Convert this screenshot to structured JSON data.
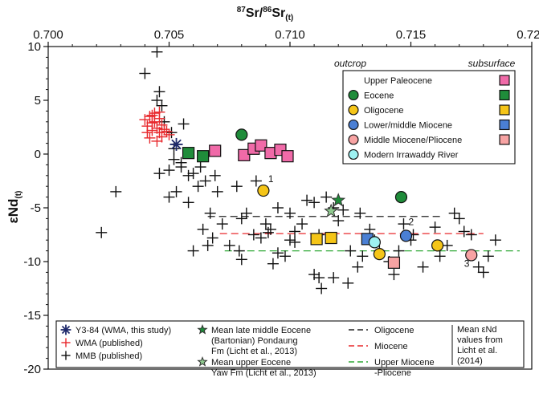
{
  "chart_data": {
    "type": "scatter",
    "title": "",
    "xlabel": {
      "main": "Sr",
      "sup_pre": "87",
      "slash": "/",
      "sup_mid": "86",
      "tail": "Sr",
      "sub": "(t)"
    },
    "ylabel": {
      "main": "εNd",
      "sub": "(t)"
    },
    "xlim": [
      0.7,
      0.72
    ],
    "ylim": [
      -20,
      10
    ],
    "x_ticks": [
      0.7,
      0.705,
      0.71,
      0.715,
      0.72
    ],
    "x_tick_labels": [
      "0.700",
      "0.705",
      "0.710",
      "0.715",
      "0.720"
    ],
    "y_ticks": [
      10,
      5,
      0,
      -5,
      -10,
      -15,
      -20
    ],
    "y_tick_labels": [
      "10",
      "5",
      "0",
      "-5",
      "-10",
      "-15",
      "-20"
    ],
    "series": [
      {
        "name": "MMB (published)",
        "marker": "plus",
        "color": "#111111",
        "x": [
          0.7045,
          0.704,
          0.7046,
          0.7047,
          0.7045,
          0.7048,
          0.7051,
          0.7052,
          0.705,
          0.7052,
          0.7055,
          0.7053,
          0.7058,
          0.706,
          0.7062,
          0.7058,
          0.7055,
          0.7065,
          0.707,
          0.7067,
          0.7064,
          0.706,
          0.7072,
          0.7068,
          0.705,
          0.7046,
          0.708,
          0.709,
          0.7085,
          0.7082,
          0.7092,
          0.7095,
          0.71,
          0.7088,
          0.7075,
          0.7079,
          0.7105,
          0.711,
          0.71,
          0.7098,
          0.7102,
          0.7115,
          0.7112,
          0.712,
          0.7125,
          0.7118,
          0.713,
          0.7128,
          0.7124,
          0.7135,
          0.7137,
          0.7133,
          0.7129,
          0.7145,
          0.715,
          0.7147,
          0.7141,
          0.716,
          0.7162,
          0.7165,
          0.717,
          0.7175,
          0.7178,
          0.7182,
          0.7185,
          0.718,
          0.7172,
          0.7168,
          0.7155,
          0.7151,
          0.7118,
          0.7113,
          0.7028,
          0.7022,
          0.7056,
          0.7063,
          0.7069,
          0.7086,
          0.7107,
          0.711,
          0.7095,
          0.7091,
          0.7078,
          0.7066,
          0.7093,
          0.708,
          0.7102,
          0.7122,
          0.7112,
          0.7143
        ],
        "y": [
          9.5,
          7.5,
          5.8,
          4.5,
          5.0,
          3.0,
          2.0,
          0.5,
          -1.5,
          -0.5,
          -1.2,
          -3.5,
          -4.5,
          -1.8,
          -3.0,
          -2.0,
          -0.8,
          -2.5,
          -3.5,
          -5.5,
          -7.0,
          -9.0,
          -6.5,
          -7.8,
          -4.0,
          -1.8,
          -6.0,
          -6.5,
          -7.5,
          -5.5,
          -7.0,
          -5.0,
          -5.5,
          -7.8,
          -8.5,
          -9.0,
          -6.5,
          -4.5,
          -8.0,
          -9.5,
          -7.2,
          -4.0,
          -7.5,
          -6.2,
          -9.0,
          -11.5,
          -9.5,
          -10.5,
          -12.0,
          -8.0,
          -9.0,
          -7.0,
          -5.5,
          -9.0,
          -8.0,
          -6.5,
          -10.0,
          -6.8,
          -9.5,
          -8.5,
          -6.0,
          -7.5,
          -10.5,
          -9.5,
          -8.0,
          -11.0,
          -7.2,
          -5.5,
          -10.5,
          -7.5,
          -5.0,
          -12.5,
          -3.5,
          -7.3,
          2.8,
          -1.2,
          -2.0,
          -2.5,
          -4.3,
          -11.2,
          -9.2,
          -7.3,
          -3.0,
          -8.5,
          -10.2,
          -9.8,
          -8.2,
          -5.2,
          -11.5,
          -11.2
        ]
      },
      {
        "name": "WMA (published)",
        "marker": "plus",
        "color": "#e8282c",
        "x": [
          0.704,
          0.7041,
          0.7042,
          0.7043,
          0.7044,
          0.7045,
          0.7046,
          0.7047,
          0.7041,
          0.7043,
          0.7044,
          0.7046,
          0.7048,
          0.705,
          0.7042,
          0.7045,
          0.7047,
          0.7049,
          0.7043,
          0.7046
        ],
        "y": [
          3.2,
          2.6,
          3.5,
          2.9,
          3.0,
          2.4,
          3.3,
          2.7,
          2.0,
          2.2,
          3.8,
          2.0,
          2.3,
          1.8,
          1.5,
          1.2,
          1.6,
          2.1,
          3.6,
          3.9
        ]
      },
      {
        "name": "Y3-84 (WMA, this study)",
        "marker": "asterisk",
        "color": "#1f2a6b",
        "x": [
          0.7053
        ],
        "y": [
          0.9
        ]
      },
      {
        "name": "Eocene outcrop",
        "marker": "circle",
        "color": "#1f8c3a",
        "x": [
          0.708,
          0.7146
        ],
        "y": [
          1.8,
          -4.0
        ]
      },
      {
        "name": "Eocene subsurface",
        "marker": "square",
        "color": "#1f8c3a",
        "x": [
          0.7058,
          0.7064
        ],
        "y": [
          0.1,
          -0.2
        ]
      },
      {
        "name": "Upper Paleocene subsurface",
        "marker": "square",
        "color": "#f06aa8",
        "x": [
          0.7069,
          0.7081,
          0.7085,
          0.7088,
          0.7092,
          0.7096,
          0.7099
        ],
        "y": [
          0.3,
          -0.1,
          0.5,
          0.8,
          0.1,
          0.4,
          -0.2
        ]
      },
      {
        "name": "Oligocene outcrop",
        "marker": "circle",
        "color": "#f5c518",
        "x": [
          0.7089,
          0.7137,
          0.7161
        ],
        "y": [
          -3.4,
          -9.3,
          -8.5
        ]
      },
      {
        "name": "Oligocene subsurface",
        "marker": "square",
        "color": "#f5c518",
        "x": [
          0.7111,
          0.7117
        ],
        "y": [
          -7.9,
          -7.8
        ]
      },
      {
        "name": "Lower/middle Miocene outcrop",
        "marker": "circle",
        "color": "#4a7fd4",
        "x": [
          0.7148
        ],
        "y": [
          -7.6
        ]
      },
      {
        "name": "Lower/middle Miocene subsurface",
        "marker": "square",
        "color": "#4a7fd4",
        "x": [
          0.7132
        ],
        "y": [
          -7.9
        ]
      },
      {
        "name": "Middle Miocene/Pliocene outcrop",
        "marker": "circle",
        "color": "#f7a3a3",
        "x": [
          0.7175
        ],
        "y": [
          -9.4
        ]
      },
      {
        "name": "Middle Miocene/Pliocene subsurface",
        "marker": "square",
        "color": "#f7a3a3",
        "x": [
          0.7143
        ],
        "y": [
          -10.1
        ]
      },
      {
        "name": "Modern Irrawaddy River",
        "marker": "circle",
        "color": "#9ef2f2",
        "x": [
          0.7135
        ],
        "y": [
          -8.2
        ]
      },
      {
        "name": "Mean late middle Eocene (Bartonian) Pondaung Fm",
        "marker": "star",
        "color": "#1f8c3a",
        "x": [
          0.712
        ],
        "y": [
          -4.3
        ]
      },
      {
        "name": "Mean upper Eocene Yaw Fm",
        "marker": "star",
        "color": "#8fc98f",
        "x": [
          0.7117
        ],
        "y": [
          -5.3
        ]
      }
    ],
    "mean_lines": [
      {
        "name": "Oligocene",
        "color": "#222222",
        "y": -5.8,
        "x": [
          0.7066,
          0.7163
        ]
      },
      {
        "name": "Miocene",
        "color": "#e8282c",
        "y": -7.4,
        "x": [
          0.7071,
          0.718
        ]
      },
      {
        "name": "Upper Miocene-Pliocene",
        "color": "#2ea836",
        "y": -9.0,
        "x": [
          0.7073,
          0.7195
        ]
      }
    ],
    "annotations": [
      {
        "text": "1",
        "x": 0.7091,
        "y": -2.6
      },
      {
        "text": "2",
        "x": 0.7149,
        "y": -6.6
      },
      {
        "text": "3",
        "x": 0.7172,
        "y": -10.5
      }
    ],
    "legend_top": {
      "placement": "top-right",
      "header_left": "outcrop",
      "header_right": "subsurface",
      "entries": [
        {
          "label": "Upper Paleocene",
          "outcrop_color": "",
          "subsurface_color": "#f06aa8"
        },
        {
          "label": "Eocene",
          "outcrop_color": "#1f8c3a",
          "subsurface_color": "#1f8c3a"
        },
        {
          "label": "Oligocene",
          "outcrop_color": "#f5c518",
          "subsurface_color": "#f5c518"
        },
        {
          "label": "Lower/middle Miocene",
          "outcrop_color": "#4a7fd4",
          "subsurface_color": "#4a7fd4"
        },
        {
          "label": "Middle Miocene/Pliocene",
          "outcrop_color": "#f7a3a3",
          "subsurface_color": "#f7a3a3"
        },
        {
          "label": "Modern Irrawaddy River",
          "outcrop_color": "#9ef2f2",
          "subsurface_color": ""
        }
      ]
    },
    "legend_bottom": {
      "placement": "bottom",
      "symbols": [
        {
          "marker": "asterisk",
          "color": "#1f2a6b",
          "lines": [
            "Y3-84 (WMA, this study)"
          ]
        },
        {
          "marker": "plus",
          "color": "#e8282c",
          "lines": [
            "WMA (published)"
          ]
        },
        {
          "marker": "plus",
          "color": "#111111",
          "lines": [
            "MMB (published)"
          ]
        }
      ],
      "stars": [
        {
          "color": "#1f8c3a",
          "lines": [
            "Mean late middle Eocene",
            "(Bartonian) Pondaung",
            "Fm (Licht et al., 2013)"
          ]
        },
        {
          "color": "#8fc98f",
          "lines": [
            "Mean upper Eocene",
            "Yaw Fm (Licht et al., 2013)"
          ]
        }
      ],
      "lines": [
        {
          "color": "#222222",
          "lines": [
            "Oligocene"
          ]
        },
        {
          "color": "#e8282c",
          "lines": [
            "Miocene"
          ]
        },
        {
          "color": "#2ea836",
          "lines": [
            "Upper Miocene",
            "-Pliocene"
          ]
        }
      ],
      "note": [
        "Mean εNd",
        "values from",
        "Licht et al.",
        "(2014)"
      ]
    }
  }
}
